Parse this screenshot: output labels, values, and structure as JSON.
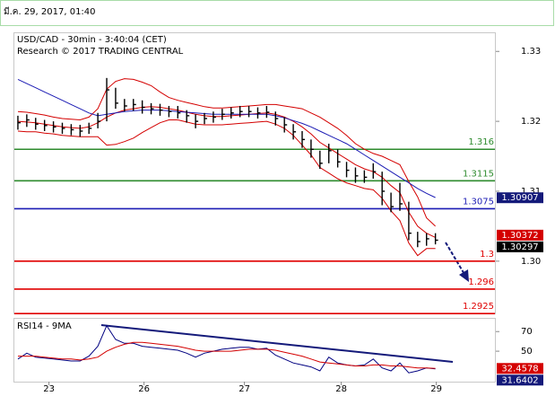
{
  "header": {
    "date": "มี.ค. 29, 2017, 01:40"
  },
  "chart_data": [
    {
      "type": "ohlc",
      "title": "USD/CAD - 30min - 3:40:04 (CET)",
      "subtitle": "Research © 2017 TRADING CENTRAL",
      "xlim": [
        -0.5,
        53.8
      ],
      "ylim": [
        1.2924,
        1.3326
      ],
      "yticks": [
        {
          "value": 1.3,
          "label": "1.30"
        },
        1.31,
        1.32,
        1.33
      ],
      "color": "#000000",
      "high": [
        1.3208,
        1.321,
        1.3205,
        1.3202,
        1.32,
        1.3198,
        1.3196,
        1.3195,
        1.3198,
        1.3212,
        1.3262,
        1.3248,
        1.3232,
        1.3232,
        1.323,
        1.3226,
        1.3225,
        1.3222,
        1.3222,
        1.3216,
        1.321,
        1.3212,
        1.3214,
        1.3218,
        1.322,
        1.3222,
        1.3222,
        1.322,
        1.3222,
        1.3214,
        1.3206,
        1.3196,
        1.3186,
        1.3174,
        1.3158,
        1.3168,
        1.316,
        1.3142,
        1.3134,
        1.313,
        1.314,
        1.3128,
        1.3098,
        1.3112,
        1.3085,
        1.3042,
        1.304,
        1.304
      ],
      "low": [
        1.3188,
        1.3192,
        1.3188,
        1.3186,
        1.3184,
        1.3182,
        1.318,
        1.3178,
        1.3182,
        1.319,
        1.32,
        1.3218,
        1.3214,
        1.3215,
        1.3211,
        1.321,
        1.3208,
        1.3206,
        1.3204,
        1.3198,
        1.319,
        1.3196,
        1.3198,
        1.3202,
        1.3204,
        1.3206,
        1.3206,
        1.3204,
        1.3205,
        1.3194,
        1.3184,
        1.3174,
        1.3162,
        1.3148,
        1.3132,
        1.314,
        1.3134,
        1.312,
        1.3112,
        1.3112,
        1.3118,
        1.308,
        1.307,
        1.3072,
        1.303,
        1.302,
        1.3022,
        1.3024
      ],
      "close": [
        1.3198,
        1.3202,
        1.3196,
        1.3194,
        1.3192,
        1.319,
        1.3188,
        1.3186,
        1.319,
        1.32,
        1.3245,
        1.3226,
        1.3222,
        1.3224,
        1.322,
        1.3218,
        1.3216,
        1.3214,
        1.3212,
        1.3208,
        1.32,
        1.3204,
        1.3206,
        1.321,
        1.3212,
        1.3214,
        1.3214,
        1.3212,
        1.3213,
        1.3204,
        1.3195,
        1.3185,
        1.3174,
        1.316,
        1.314,
        1.3158,
        1.3142,
        1.313,
        1.3122,
        1.312,
        1.3128,
        1.31,
        1.3078,
        1.3082,
        1.304,
        1.3028,
        1.3032,
        1.303
      ],
      "bollinger": {
        "color": "#d40000",
        "upper": [
          1.3214,
          1.3213,
          1.3211,
          1.3209,
          1.3206,
          1.3204,
          1.3203,
          1.3202,
          1.3206,
          1.3218,
          1.3246,
          1.3257,
          1.3261,
          1.326,
          1.3256,
          1.3251,
          1.3242,
          1.3234,
          1.323,
          1.3227,
          1.3224,
          1.3221,
          1.3219,
          1.3219,
          1.322,
          1.3221,
          1.3222,
          1.3223,
          1.3224,
          1.3224,
          1.3222,
          1.322,
          1.3218,
          1.3212,
          1.3206,
          1.3198,
          1.319,
          1.318,
          1.3168,
          1.316,
          1.3154,
          1.315,
          1.3144,
          1.3138,
          1.3114,
          1.3092,
          1.3062,
          1.305
        ],
        "middle": [
          1.32,
          1.3199,
          1.3198,
          1.3196,
          1.3194,
          1.3192,
          1.3191,
          1.319,
          1.3192,
          1.3198,
          1.3206,
          1.3212,
          1.3216,
          1.3218,
          1.322,
          1.3221,
          1.322,
          1.3218,
          1.3216,
          1.3213,
          1.321,
          1.3208,
          1.3207,
          1.3207,
          1.3208,
          1.3209,
          1.321,
          1.3211,
          1.3212,
          1.321,
          1.3206,
          1.32,
          1.3192,
          1.3182,
          1.317,
          1.3162,
          1.3154,
          1.3146,
          1.3138,
          1.3132,
          1.3128,
          1.312,
          1.3108,
          1.3098,
          1.307,
          1.305,
          1.304,
          1.3034
        ],
        "lower": [
          1.3186,
          1.3185,
          1.3185,
          1.3183,
          1.3182,
          1.318,
          1.3179,
          1.3178,
          1.3178,
          1.3178,
          1.3166,
          1.3167,
          1.3171,
          1.3176,
          1.3184,
          1.3191,
          1.3198,
          1.3202,
          1.3202,
          1.3199,
          1.3196,
          1.3195,
          1.3195,
          1.3195,
          1.3196,
          1.3197,
          1.3198,
          1.3199,
          1.32,
          1.3196,
          1.319,
          1.318,
          1.3166,
          1.3152,
          1.3134,
          1.3126,
          1.3118,
          1.3112,
          1.3108,
          1.3104,
          1.3102,
          1.309,
          1.3072,
          1.3058,
          1.3026,
          1.3008,
          1.3018,
          1.3018
        ]
      },
      "ma": {
        "color": "#1c1cb4",
        "values": [
          1.326,
          1.3254,
          1.3248,
          1.3242,
          1.3236,
          1.323,
          1.3224,
          1.3218,
          1.3212,
          1.3208,
          1.321,
          1.3212,
          1.3214,
          1.3215,
          1.3216,
          1.3216,
          1.3216,
          1.3215,
          1.3214,
          1.3213,
          1.3212,
          1.3211,
          1.321,
          1.321,
          1.321,
          1.321,
          1.321,
          1.321,
          1.321,
          1.3208,
          1.3205,
          1.3201,
          1.3197,
          1.3192,
          1.3186,
          1.318,
          1.3174,
          1.3168,
          1.316,
          1.3152,
          1.3144,
          1.3136,
          1.3128,
          1.312,
          1.3112,
          1.3104,
          1.3097,
          1.3091
        ]
      },
      "levels": [
        {
          "value": 1.316,
          "color": "#2e8b2e"
        },
        {
          "value": 1.3115,
          "color": "#2e8b2e"
        },
        {
          "value": 1.3075,
          "color": "#1c1cb4"
        },
        {
          "value": 1.3,
          "color": "#e00000"
        },
        {
          "value": 1.296,
          "color": "#e00000"
        },
        {
          "value": 1.2925,
          "color": "#e00000"
        }
      ],
      "price_tags": [
        {
          "value": 1.30907,
          "color": "#141a7a"
        },
        {
          "value": 1.30372,
          "color": "#d40000"
        },
        {
          "value": 1.30297,
          "color": "#000000"
        }
      ]
    },
    {
      "type": "line",
      "title": "RSI14 - 9MA",
      "xlim": [
        -0.5,
        53.8
      ],
      "xticks": [
        {
          "value": 3.5,
          "label": "23"
        },
        {
          "value": 14.2,
          "label": "26"
        },
        {
          "value": 25.5,
          "label": "27"
        },
        {
          "value": 36.4,
          "label": "28"
        },
        {
          "value": 47.1,
          "label": "29"
        }
      ],
      "ylim": [
        19,
        83
      ],
      "yticks": [
        50,
        70
      ],
      "series": [
        {
          "color": "#000080",
          "values": [
            42,
            48,
            44,
            43,
            42,
            41,
            40,
            40,
            45,
            55,
            76,
            62,
            58,
            58,
            55,
            54,
            53,
            52,
            51,
            48,
            44,
            48,
            50,
            52,
            53,
            54,
            54,
            52,
            53,
            46,
            42,
            38,
            36,
            34,
            30,
            44,
            38,
            36,
            35,
            36,
            42,
            33,
            30,
            38,
            28,
            30,
            33,
            32
          ]
        },
        {
          "color": "#d40000",
          "values": [
            45,
            45,
            45,
            44,
            43,
            42,
            42,
            41,
            42,
            44,
            50,
            54,
            57,
            59,
            59,
            58,
            57,
            56,
            55,
            53,
            51,
            50,
            50,
            50,
            50,
            51,
            52,
            52,
            52,
            51,
            49,
            47,
            45,
            42,
            39,
            38,
            37,
            36,
            35,
            35,
            36,
            36,
            35,
            35,
            34,
            33,
            33,
            32.5
          ]
        }
      ],
      "price_tags": [
        {
          "value": 32.4578,
          "color": "#d40000"
        },
        {
          "value": 31.6402,
          "color": "#141a7a"
        }
      ]
    }
  ]
}
